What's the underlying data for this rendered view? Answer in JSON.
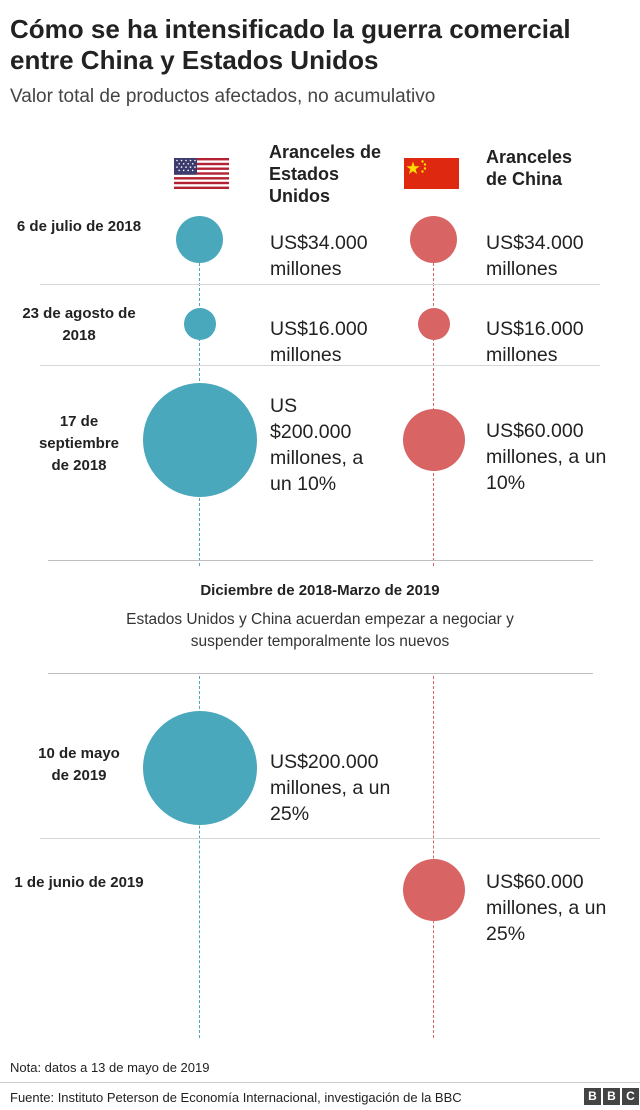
{
  "header": {
    "title": "Cómo se ha intensificado la guerra comercial entre China y Estados Unidos",
    "subtitle": "Valor total de productos afectados, no acumulativo"
  },
  "columns": {
    "us": {
      "label": "Aranceles de Estados Unidos",
      "flag": "usa-flag-icon"
    },
    "china": {
      "label": "Aranceles de China",
      "flag": "china-flag-icon"
    }
  },
  "colors": {
    "us": "#4aa8bd",
    "china": "#d96464",
    "divider": "#d7d7d7"
  },
  "chart_data": {
    "type": "bubble-timeline",
    "unit": "US$ millones",
    "events": [
      {
        "date": "6 de julio de 2018",
        "us_value": 34000,
        "us_label": "US$34.000 millones",
        "china_value": 34000,
        "china_label": "US$34.000 millones"
      },
      {
        "date": "23 de agosto de 2018",
        "us_value": 16000,
        "us_label": "US$16.000 millones",
        "china_value": 16000,
        "china_label": "US$16.000 millones"
      },
      {
        "date": "17 de septiembre de 2018",
        "us_value": 200000,
        "us_label": "US $200.000 millones, a un 10%",
        "china_value": 60000,
        "china_label": "US$60.000 millones, a un 10%"
      },
      {
        "date": "10 de mayo de 2019",
        "us_value": 200000,
        "us_label": "US$200.000 millones, a un 25%",
        "china_value": null,
        "china_label": ""
      },
      {
        "date": "1 de junio de 2019",
        "us_value": null,
        "us_label": "",
        "china_value": 60000,
        "china_label": "US$60.000 millones, a un 25%"
      }
    ],
    "pause": {
      "title": "Diciembre de 2018-Marzo de 2019",
      "text": "Estados Unidos y China acuerdan empezar a negociar y suspender temporalmente los nuevos"
    }
  },
  "footer": {
    "note": "Nota: datos a 13 de mayo de 2019",
    "source": "Fuente: Instituto Peterson de Economía Internacional, investigación de la BBC",
    "logo_letters": [
      "B",
      "B",
      "C"
    ]
  }
}
